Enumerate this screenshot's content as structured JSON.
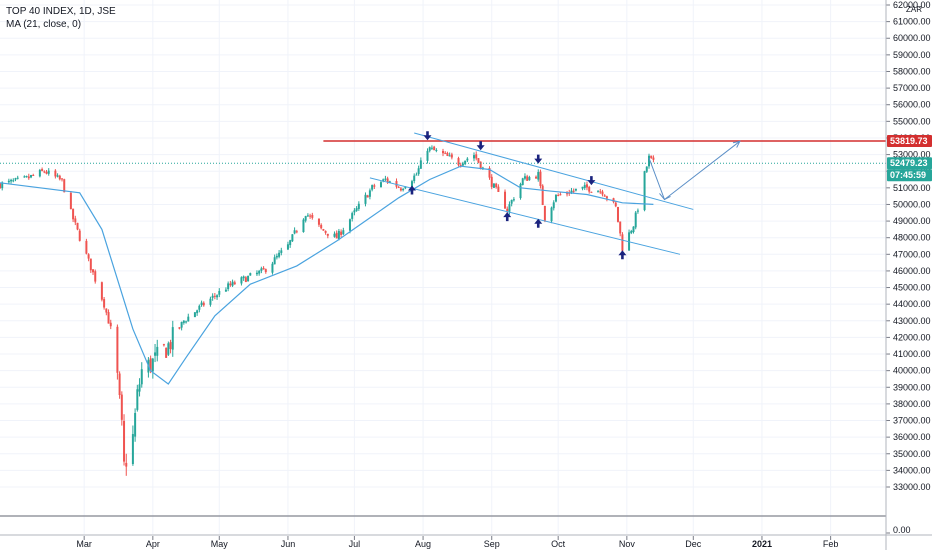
{
  "legend": {
    "symbol": "TOP 40 INDEX, 1D, JSE",
    "indicator": "MA (21, close, 0)"
  },
  "currency": "ZAR",
  "colors": {
    "up": "#26a69a",
    "down": "#ef5350",
    "ma": "#4aa3df",
    "channel": "#4aa3df",
    "resistance": "#d32f2f",
    "marker": "#1a237e",
    "price_tag": "#26a69a",
    "grid": "#f0f3fa"
  },
  "price_tags": {
    "resistance": "53819.73",
    "last": "52479.23",
    "countdown": "07:45:59"
  },
  "chart_data": {
    "type": "candlestick",
    "title": "TOP 40 INDEX, 1D, JSE",
    "ylim": [
      32000,
      62500
    ],
    "y_ticks": [
      33000,
      34000,
      35000,
      36000,
      37000,
      38000,
      39000,
      40000,
      41000,
      42000,
      43000,
      44000,
      45000,
      46000,
      47000,
      48000,
      49000,
      50000,
      51000,
      52000,
      53000,
      54000,
      55000,
      56000,
      57000,
      58000,
      59000,
      60000,
      61000,
      62000
    ],
    "y_zero_label": "0.00",
    "x_labels": [
      "Mar",
      "Apr",
      "May",
      "Jun",
      "Jul",
      "Aug",
      "Sep",
      "Oct",
      "Nov",
      "Dec",
      "2021",
      "Feb"
    ],
    "x_range": [
      "2020-01-23",
      "2021-02-26"
    ],
    "x_label_dates": [
      "2020-03-01",
      "2020-04-01",
      "2020-05-01",
      "2020-06-01",
      "2020-07-01",
      "2020-08-01",
      "2020-09-01",
      "2020-10-01",
      "2020-11-01",
      "2020-12-01",
      "2021-01-01",
      "2021-02-01"
    ],
    "closes": [
      {
        "date": "2020-01-23",
        "close": 51200
      },
      {
        "date": "2020-02-03",
        "close": 51500
      },
      {
        "date": "2020-02-12",
        "close": 52000
      },
      {
        "date": "2020-02-20",
        "close": 51400
      },
      {
        "date": "2020-02-24",
        "close": 49500
      },
      {
        "date": "2020-02-28",
        "close": 48000
      },
      {
        "date": "2020-03-06",
        "close": 45500
      },
      {
        "date": "2020-03-10",
        "close": 44000
      },
      {
        "date": "2020-03-13",
        "close": 42500
      },
      {
        "date": "2020-03-16",
        "close": 39500
      },
      {
        "date": "2020-03-18",
        "close": 36500
      },
      {
        "date": "2020-03-19",
        "close": 34200
      },
      {
        "date": "2020-03-23",
        "close": 36000
      },
      {
        "date": "2020-03-25",
        "close": 38500
      },
      {
        "date": "2020-03-27",
        "close": 40000
      },
      {
        "date": "2020-04-01",
        "close": 40500
      },
      {
        "date": "2020-04-08",
        "close": 41500
      },
      {
        "date": "2020-04-15",
        "close": 43000
      },
      {
        "date": "2020-04-24",
        "close": 44000
      },
      {
        "date": "2020-05-04",
        "close": 45000
      },
      {
        "date": "2020-05-12",
        "close": 45500
      },
      {
        "date": "2020-05-21",
        "close": 46000
      },
      {
        "date": "2020-06-01",
        "close": 47500
      },
      {
        "date": "2020-06-09",
        "close": 49500
      },
      {
        "date": "2020-06-16",
        "close": 48500
      },
      {
        "date": "2020-06-23",
        "close": 48000
      },
      {
        "date": "2020-07-01",
        "close": 49500
      },
      {
        "date": "2020-07-09",
        "close": 51000
      },
      {
        "date": "2020-07-15",
        "close": 51500
      },
      {
        "date": "2020-07-22",
        "close": 51000
      },
      {
        "date": "2020-07-29",
        "close": 51800
      },
      {
        "date": "2020-08-03",
        "close": 53400
      },
      {
        "date": "2020-08-10",
        "close": 53000
      },
      {
        "date": "2020-08-17",
        "close": 52500
      },
      {
        "date": "2020-08-24",
        "close": 53000
      },
      {
        "date": "2020-08-31",
        "close": 51500
      },
      {
        "date": "2020-09-08",
        "close": 49700
      },
      {
        "date": "2020-09-15",
        "close": 51500
      },
      {
        "date": "2020-09-22",
        "close": 51800
      },
      {
        "date": "2020-09-25",
        "close": 49200
      },
      {
        "date": "2020-09-30",
        "close": 50500
      },
      {
        "date": "2020-10-07",
        "close": 50800
      },
      {
        "date": "2020-10-14",
        "close": 51000
      },
      {
        "date": "2020-10-21",
        "close": 50800
      },
      {
        "date": "2020-10-27",
        "close": 49800
      },
      {
        "date": "2020-10-30",
        "close": 47400
      },
      {
        "date": "2020-11-04",
        "close": 48800
      },
      {
        "date": "2020-11-06",
        "close": 49800
      },
      {
        "date": "2020-11-09",
        "close": 51800
      },
      {
        "date": "2020-11-11",
        "close": 52800
      },
      {
        "date": "2020-11-13",
        "close": 52479
      }
    ],
    "moving_average": {
      "name": "MA (21, close, 0)",
      "points": [
        {
          "date": "2020-01-23",
          "value": 51300
        },
        {
          "date": "2020-02-28",
          "value": 50700
        },
        {
          "date": "2020-03-09",
          "value": 48500
        },
        {
          "date": "2020-03-16",
          "value": 45500
        },
        {
          "date": "2020-03-23",
          "value": 42500
        },
        {
          "date": "2020-03-31",
          "value": 40000
        },
        {
          "date": "2020-04-08",
          "value": 39200
        },
        {
          "date": "2020-04-16",
          "value": 40800
        },
        {
          "date": "2020-04-29",
          "value": 43300
        },
        {
          "date": "2020-05-15",
          "value": 45200
        },
        {
          "date": "2020-06-05",
          "value": 46300
        },
        {
          "date": "2020-06-23",
          "value": 47800
        },
        {
          "date": "2020-07-07",
          "value": 49100
        },
        {
          "date": "2020-07-21",
          "value": 50400
        },
        {
          "date": "2020-08-04",
          "value": 51500
        },
        {
          "date": "2020-08-18",
          "value": 52300
        },
        {
          "date": "2020-08-31",
          "value": 52100
        },
        {
          "date": "2020-09-14",
          "value": 51000
        },
        {
          "date": "2020-09-28",
          "value": 50800
        },
        {
          "date": "2020-10-14",
          "value": 50600
        },
        {
          "date": "2020-10-30",
          "value": 50100
        },
        {
          "date": "2020-11-13",
          "value": 50000
        }
      ]
    },
    "resistance_level": 53819.73,
    "last_price": 52479.23,
    "channel": {
      "upper": [
        {
          "date": "2020-07-28",
          "value": 54300
        },
        {
          "date": "2020-12-01",
          "value": 49700
        }
      ],
      "lower": [
        {
          "date": "2020-07-08",
          "value": 51600
        },
        {
          "date": "2020-11-25",
          "value": 47000
        }
      ]
    },
    "projection": [
      {
        "date": "2020-11-11",
        "value": 52800
      },
      {
        "date": "2020-11-18",
        "value": 50300
      },
      {
        "date": "2020-12-22",
        "value": 53800
      }
    ],
    "markers": [
      {
        "date": "2020-08-03",
        "value": 54100,
        "direction": "down"
      },
      {
        "date": "2020-07-27",
        "value": 50900,
        "direction": "up"
      },
      {
        "date": "2020-08-27",
        "value": 53500,
        "direction": "down"
      },
      {
        "date": "2020-09-08",
        "value": 49300,
        "direction": "up"
      },
      {
        "date": "2020-09-22",
        "value": 52700,
        "direction": "down"
      },
      {
        "date": "2020-09-22",
        "value": 48900,
        "direction": "up"
      },
      {
        "date": "2020-10-16",
        "value": 51400,
        "direction": "down"
      },
      {
        "date": "2020-10-30",
        "value": 47000,
        "direction": "up"
      }
    ]
  }
}
